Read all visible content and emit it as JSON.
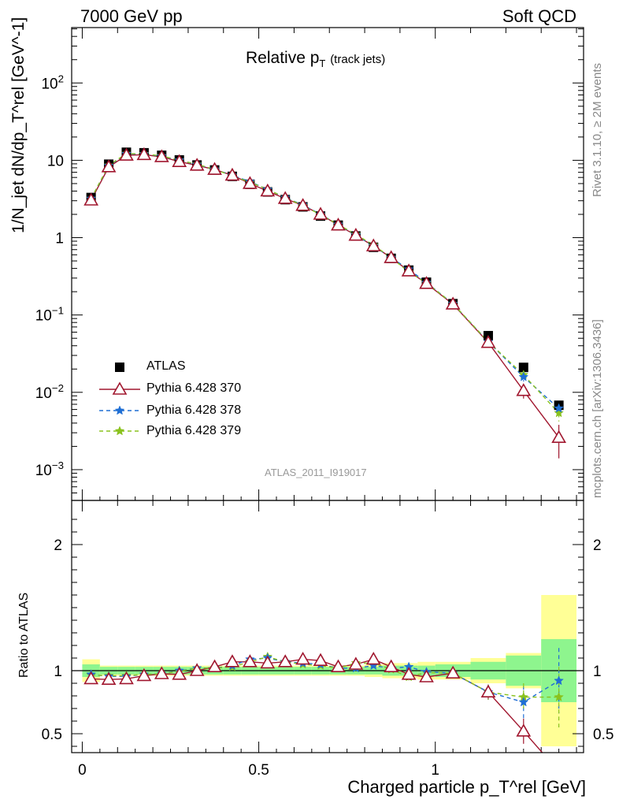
{
  "header": {
    "left": "7000 GeV pp",
    "right": "Soft QCD"
  },
  "plot_title": {
    "main": "Relative p",
    "sub": "T",
    "extra": "(track jets)"
  },
  "side_text": {
    "rivet": "Rivet 3.1.10, ≥ 2M events",
    "mcplots": "mcplots.cern.ch [arXiv:1306.3436]"
  },
  "watermark": "ATLAS_2011_I919017",
  "axes": {
    "main_ylabel": "1/N_jet dN/dp_T^rel [GeV^-1]",
    "ratio_ylabel": "Ratio to ATLAS",
    "xlabel": "Charged particle p_T^rel [GeV]"
  },
  "legend": [
    {
      "label": "ATLAS",
      "marker": "square",
      "color": "#000000"
    },
    {
      "label": "Pythia 6.428 370",
      "marker": "triangle",
      "color": "#a0162e"
    },
    {
      "label": "Pythia 6.428 378",
      "marker": "star",
      "color": "#1f6fd4"
    },
    {
      "label": "Pythia 6.428 379",
      "marker": "star",
      "color": "#8ac21e"
    }
  ],
  "chart_data": {
    "type": "line",
    "log_y": true,
    "xlim": [
      -0.03,
      1.42
    ],
    "ylim_main": [
      0.0004,
      520
    ],
    "ylim_ratio": [
      0.35,
      2.35
    ],
    "main_yticks": [
      {
        "v": 0.001,
        "b": "10",
        "e": "−3"
      },
      {
        "v": 0.01,
        "b": "10",
        "e": "−2"
      },
      {
        "v": 0.1,
        "b": "10",
        "e": "−1"
      },
      {
        "v": 1,
        "b": "1",
        "e": ""
      },
      {
        "v": 10,
        "b": "10",
        "e": ""
      },
      {
        "v": 100,
        "b": "10",
        "e": "2"
      }
    ],
    "ratio_yticks": [
      {
        "v": 0.5,
        "label": "0.5"
      },
      {
        "v": 1,
        "label": "1"
      },
      {
        "v": 2,
        "label": "2"
      }
    ],
    "xticks": [
      {
        "v": 0,
        "label": "0"
      },
      {
        "v": 0.5,
        "label": "0.5"
      },
      {
        "v": 1,
        "label": "1"
      }
    ],
    "x": [
      0.025,
      0.075,
      0.125,
      0.175,
      0.225,
      0.275,
      0.325,
      0.375,
      0.425,
      0.475,
      0.525,
      0.575,
      0.625,
      0.675,
      0.725,
      0.775,
      0.825,
      0.875,
      0.925,
      0.975,
      1.05,
      1.15,
      1.25,
      1.35
    ],
    "atlas": [
      3.3,
      8.9,
      12.7,
      12.5,
      11.6,
      10.1,
      8.7,
      7.5,
      6.2,
      4.9,
      3.9,
      3.1,
      2.5,
      1.9,
      1.45,
      1.05,
      0.75,
      0.54,
      0.38,
      0.265,
      0.14,
      0.054,
      0.021,
      0.0068
    ],
    "series": [
      {
        "name": "Pythia 6.428 370",
        "color": "#a0162e",
        "dash": "",
        "marker": "triangle",
        "values": [
          3.05,
          8.2,
          11.6,
          11.8,
          11.1,
          9.6,
          8.6,
          7.6,
          6.4,
          5.0,
          4.0,
          3.2,
          2.6,
          2.0,
          1.45,
          1.07,
          0.78,
          0.55,
          0.37,
          0.255,
          0.138,
          0.044,
          0.0105,
          0.0026
        ],
        "errors": [
          0,
          0,
          0,
          0,
          0,
          0,
          0,
          0,
          0,
          0,
          0,
          0,
          0,
          0,
          0,
          0,
          0,
          0,
          0,
          0,
          0,
          0.003,
          0.0022,
          0.0012
        ]
      },
      {
        "name": "Pythia 6.428 378",
        "color": "#1f6fd4",
        "dash": "5,4",
        "marker": "star",
        "values": [
          3.2,
          8.5,
          12.1,
          12.0,
          11.3,
          10.0,
          8.8,
          7.6,
          6.4,
          5.3,
          4.2,
          3.3,
          2.65,
          2.0,
          1.48,
          1.08,
          0.78,
          0.55,
          0.39,
          0.262,
          0.14,
          0.045,
          0.0158,
          0.0062
        ],
        "errors": [
          0,
          0,
          0,
          0,
          0,
          0,
          0,
          0,
          0,
          0,
          0,
          0,
          0,
          0,
          0,
          0,
          0,
          0,
          0,
          0,
          0,
          0.003,
          0.002,
          0.0012
        ]
      },
      {
        "name": "Pythia 6.428 379",
        "color": "#8ac21e",
        "dash": "5,4",
        "marker": "star",
        "values": [
          3.2,
          8.6,
          12.2,
          12.1,
          11.4,
          10.0,
          8.9,
          7.6,
          6.3,
          5.2,
          4.2,
          3.3,
          2.6,
          1.98,
          1.48,
          1.1,
          0.8,
          0.55,
          0.36,
          0.26,
          0.14,
          0.045,
          0.0168,
          0.0054
        ],
        "errors": [
          0,
          0,
          0,
          0,
          0,
          0,
          0,
          0,
          0,
          0,
          0,
          0,
          0,
          0,
          0,
          0,
          0,
          0,
          0,
          0,
          0,
          0.003,
          0.002,
          0.0012
        ]
      }
    ],
    "ratio": {
      "bins": [
        [
          0,
          0.05
        ],
        [
          0.05,
          0.1
        ],
        [
          0.1,
          0.15
        ],
        [
          0.15,
          0.2
        ],
        [
          0.2,
          0.25
        ],
        [
          0.25,
          0.3
        ],
        [
          0.3,
          0.35
        ],
        [
          0.35,
          0.4
        ],
        [
          0.4,
          0.45
        ],
        [
          0.45,
          0.5
        ],
        [
          0.5,
          0.55
        ],
        [
          0.55,
          0.6
        ],
        [
          0.6,
          0.65
        ],
        [
          0.65,
          0.7
        ],
        [
          0.7,
          0.75
        ],
        [
          0.75,
          0.8
        ],
        [
          0.8,
          0.85
        ],
        [
          0.85,
          0.9
        ],
        [
          0.9,
          0.95
        ],
        [
          0.95,
          1.0
        ],
        [
          1.0,
          1.1
        ],
        [
          1.1,
          1.2
        ],
        [
          1.2,
          1.3
        ],
        [
          1.3,
          1.4
        ]
      ],
      "band_stat": [
        0.05,
        0.03,
        0.03,
        0.03,
        0.03,
        0.03,
        0.03,
        0.03,
        0.03,
        0.03,
        0.03,
        0.03,
        0.03,
        0.03,
        0.03,
        0.03,
        0.03,
        0.04,
        0.04,
        0.04,
        0.05,
        0.07,
        0.12,
        0.25
      ],
      "band_total": [
        0.09,
        0.04,
        0.04,
        0.04,
        0.04,
        0.04,
        0.04,
        0.04,
        0.04,
        0.04,
        0.04,
        0.04,
        0.04,
        0.04,
        0.04,
        0.04,
        0.05,
        0.06,
        0.06,
        0.07,
        0.07,
        0.1,
        0.14,
        0.6
      ],
      "series": [
        {
          "name": "Pythia 6.428 370",
          "values": [
            0.935,
            0.93,
            0.935,
            0.96,
            0.975,
            0.97,
            1.0,
            1.03,
            1.07,
            1.07,
            1.06,
            1.07,
            1.09,
            1.08,
            1.03,
            1.05,
            1.09,
            1.03,
            0.97,
            0.95,
            0.98,
            0.83,
            0.52,
            0.2
          ],
          "errors": [
            0,
            0,
            0,
            0,
            0,
            0,
            0,
            0,
            0,
            0,
            0,
            0,
            0,
            0,
            0,
            0,
            0,
            0,
            0.03,
            0.03,
            0.04,
            0.06,
            0.1,
            0.12
          ]
        },
        {
          "name": "Pythia 6.428 378",
          "values": [
            0.97,
            0.955,
            0.955,
            0.97,
            0.975,
            1.0,
            1.02,
            1.02,
            1.04,
            1.09,
            1.1,
            1.07,
            1.06,
            1.05,
            1.02,
            1.02,
            1.04,
            1.02,
            1.03,
            0.99,
            0.98,
            0.83,
            0.75,
            0.92
          ],
          "errors": [
            0,
            0,
            0,
            0,
            0,
            0,
            0,
            0,
            0,
            0,
            0,
            0,
            0,
            0,
            0,
            0,
            0,
            0,
            0.03,
            0.03,
            0.04,
            0.06,
            0.13,
            0.26
          ]
        },
        {
          "name": "Pythia 6.428 379",
          "values": [
            0.965,
            0.96,
            0.96,
            0.97,
            0.975,
            0.995,
            1.02,
            1.02,
            1.03,
            1.07,
            1.11,
            1.07,
            1.05,
            1.04,
            1.02,
            1.06,
            1.06,
            1.01,
            0.95,
            0.985,
            0.98,
            0.83,
            0.79,
            0.79
          ],
          "errors": [
            0,
            0,
            0,
            0,
            0,
            0,
            0,
            0,
            0,
            0,
            0,
            0,
            0,
            0,
            0,
            0,
            0,
            0,
            0.03,
            0.03,
            0.04,
            0.06,
            0.11,
            0.24
          ]
        }
      ]
    }
  }
}
